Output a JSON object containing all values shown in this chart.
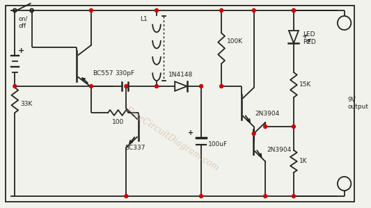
{
  "bg_color": "#f2f2ec",
  "line_color": "#222222",
  "wire_color": "#222222",
  "node_color": "#cc0000",
  "label_color": "#222222",
  "watermark_color": "#c8b090",
  "watermark": "FreeCircuitDiagram.com",
  "component_labels": {
    "switch": "on/\noff",
    "resistor_33k": "33K",
    "transistor_pnp": "BC557",
    "capacitor_330pf": "330pF",
    "resistor_100": "100",
    "transistor_bc337": "BC337",
    "inductor": "L1",
    "diode": "1N4148",
    "capacitor_100uf": "100uF",
    "resistor_100k": "100K",
    "transistor_2n3904_1": "2N3904",
    "transistor_2n3904_2": "2N3904",
    "led_label": "LED\nRED",
    "resistor_15k": "15K",
    "resistor_1k": "1K",
    "output": "9V\noutput"
  }
}
